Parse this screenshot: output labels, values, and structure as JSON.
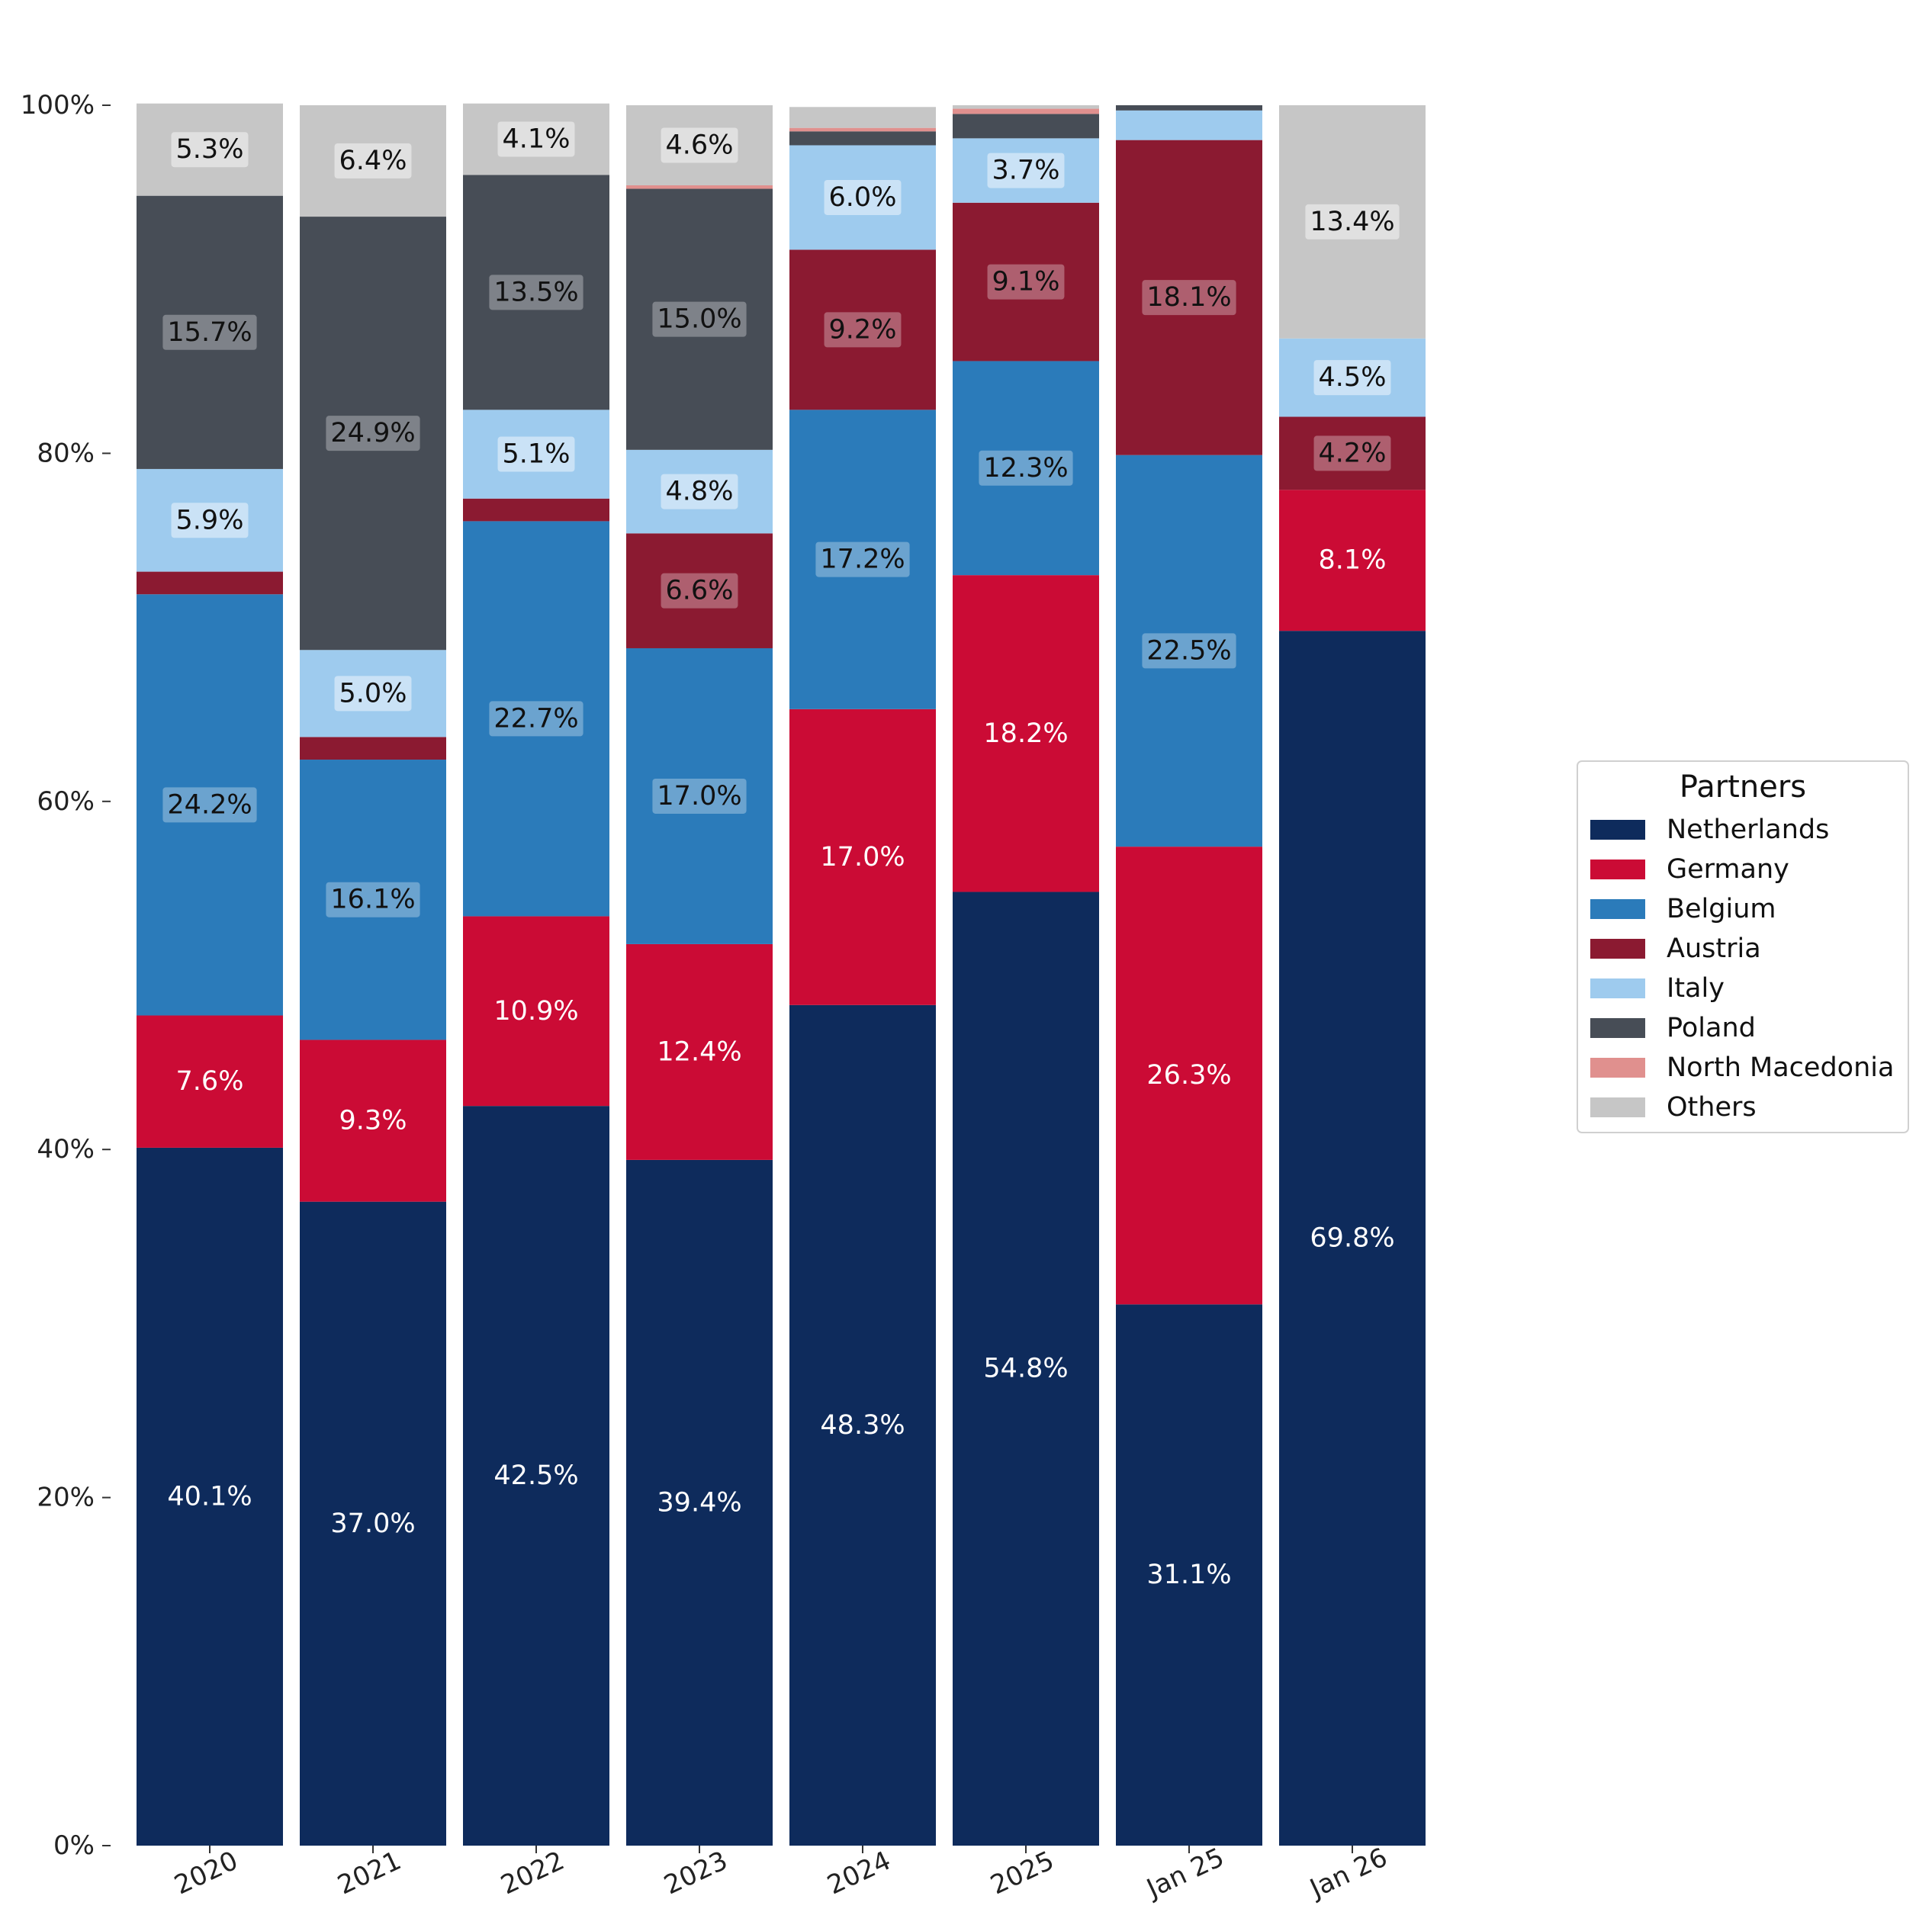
{
  "chart_data": {
    "type": "bar",
    "stacked": true,
    "categories": [
      "2020",
      "2021",
      "2022",
      "2023",
      "2024",
      "2025",
      "Jan 25",
      "Jan 26"
    ],
    "series": [
      {
        "name": "Netherlands",
        "color": "#0e2b5c",
        "values": [
          40.1,
          37.0,
          42.5,
          39.4,
          48.3,
          54.8,
          31.1,
          69.8
        ]
      },
      {
        "name": "Germany",
        "color": "#cb0b35",
        "values": [
          7.6,
          9.3,
          10.9,
          12.4,
          17.0,
          18.2,
          26.3,
          8.1
        ]
      },
      {
        "name": "Belgium",
        "color": "#2b7bba",
        "values": [
          24.2,
          16.1,
          22.7,
          17.0,
          17.2,
          12.3,
          22.5,
          0
        ]
      },
      {
        "name": "Austria",
        "color": "#8b1a31",
        "values": [
          1.3,
          1.3,
          1.3,
          6.6,
          9.2,
          9.1,
          18.1,
          4.2
        ]
      },
      {
        "name": "Italy",
        "color": "#9ecbee",
        "values": [
          5.9,
          5.0,
          5.1,
          4.8,
          6.0,
          3.7,
          1.7,
          4.5
        ]
      },
      {
        "name": "Poland",
        "color": "#474d56",
        "values": [
          15.7,
          24.9,
          13.5,
          15.0,
          0.8,
          1.4,
          0.3,
          0
        ]
      },
      {
        "name": "North Macedonia",
        "color": "#e0908e",
        "values": [
          0,
          0,
          0,
          0.2,
          0.2,
          0.3,
          0,
          0
        ]
      },
      {
        "name": "Others",
        "color": "#c6c6c6",
        "values": [
          5.3,
          6.4,
          4.1,
          4.6,
          1.2,
          0.2,
          0,
          13.4
        ]
      }
    ],
    "data_labels": [
      [
        "40.1%",
        "7.6%",
        "24.2%",
        "",
        "5.9%",
        "15.7%",
        "",
        "5.3%"
      ],
      [
        "37.0%",
        "9.3%",
        "16.1%",
        "",
        "5.0%",
        "24.9%",
        "",
        "6.4%"
      ],
      [
        "42.5%",
        "10.9%",
        "22.7%",
        "",
        "5.1%",
        "13.5%",
        "",
        "4.1%"
      ],
      [
        "39.4%",
        "12.4%",
        "17.0%",
        "6.6%",
        "4.8%",
        "15.0%",
        "",
        "4.6%"
      ],
      [
        "48.3%",
        "17.0%",
        "17.2%",
        "9.2%",
        "6.0%",
        "",
        "",
        ""
      ],
      [
        "54.8%",
        "18.2%",
        "12.3%",
        "9.1%",
        "3.7%",
        "",
        "",
        ""
      ],
      [
        "31.1%",
        "26.3%",
        "22.5%",
        "18.1%",
        "",
        "",
        "",
        ""
      ],
      [
        "69.8%",
        "8.1%",
        "",
        "4.2%",
        "4.5%",
        "",
        "",
        "13.4%"
      ]
    ],
    "y_ticks": [
      "0%",
      "20%",
      "40%",
      "60%",
      "80%",
      "100%"
    ],
    "y_tick_values": [
      0,
      20,
      40,
      60,
      80,
      100
    ],
    "ylim": [
      0,
      100
    ],
    "title": "",
    "xlabel": "",
    "ylabel": "",
    "grid": false,
    "x_tick_rotation": 25,
    "legend": {
      "title": "Partners",
      "placement": "right",
      "entries": [
        "Netherlands",
        "Germany",
        "Belgium",
        "Austria",
        "Italy",
        "Poland",
        "North Macedonia",
        "Others"
      ]
    }
  }
}
